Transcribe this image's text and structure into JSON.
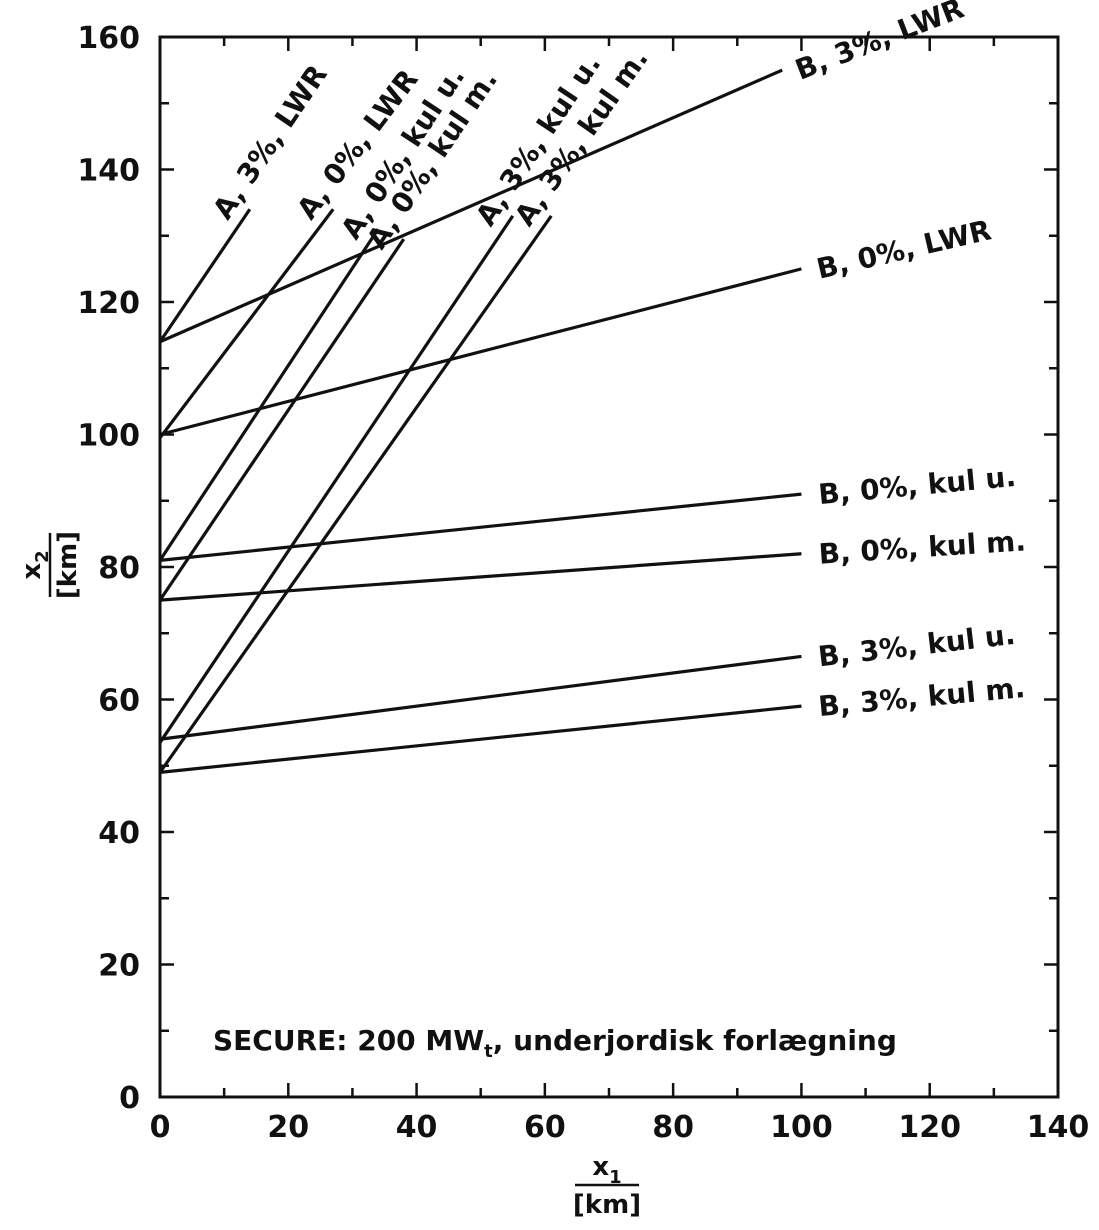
{
  "chart_data": {
    "type": "line",
    "title": "",
    "xlabel": "x",
    "xlabel_sub": "1",
    "xlabel_unit": "[km]",
    "ylabel": "x",
    "ylabel_sub": "2",
    "ylabel_unit": "[km]",
    "xlim": [
      0,
      140
    ],
    "ylim": [
      0,
      160
    ],
    "x_ticks": [
      0,
      20,
      40,
      60,
      80,
      100,
      120,
      140
    ],
    "y_ticks": [
      0,
      20,
      40,
      60,
      80,
      100,
      120,
      140,
      160
    ],
    "grid": false,
    "annotation": {
      "main": "SECURE: 200 MW",
      "sub": "t",
      "rest": ", underjordisk forlægning"
    },
    "series": [
      {
        "name": "A, 3%, LWR",
        "x": [
          0,
          14
        ],
        "y": [
          114,
          134
        ]
      },
      {
        "name": "A, 0%, LWR",
        "x": [
          0,
          27
        ],
        "y": [
          99.5,
          134
        ]
      },
      {
        "name": "A, 0%, kul u.",
        "x": [
          0,
          34
        ],
        "y": [
          81,
          131
        ]
      },
      {
        "name": "A, 0%, kul m.",
        "x": [
          0,
          38
        ],
        "y": [
          75,
          129.5
        ]
      },
      {
        "name": "A, 3%, kul u.",
        "x": [
          0,
          55
        ],
        "y": [
          53.5,
          133
        ]
      },
      {
        "name": "A, 3%, kul m.",
        "x": [
          0,
          61
        ],
        "y": [
          49,
          133
        ]
      },
      {
        "name": "B, 3%, LWR",
        "x": [
          0,
          97
        ],
        "y": [
          114,
          155
        ]
      },
      {
        "name": "B, 0%, LWR",
        "x": [
          0,
          100
        ],
        "y": [
          100,
          125
        ]
      },
      {
        "name": "B, 0%, kul u.",
        "x": [
          0,
          100
        ],
        "y": [
          81,
          91
        ]
      },
      {
        "name": "B, 0%, kul m.",
        "x": [
          0,
          100
        ],
        "y": [
          75,
          82
        ]
      },
      {
        "name": "B, 3%, kul u.",
        "x": [
          0,
          100
        ],
        "y": [
          54,
          66.5
        ]
      },
      {
        "name": "B, 3%, kul m.",
        "x": [
          0,
          100
        ],
        "y": [
          49,
          59
        ]
      }
    ]
  }
}
